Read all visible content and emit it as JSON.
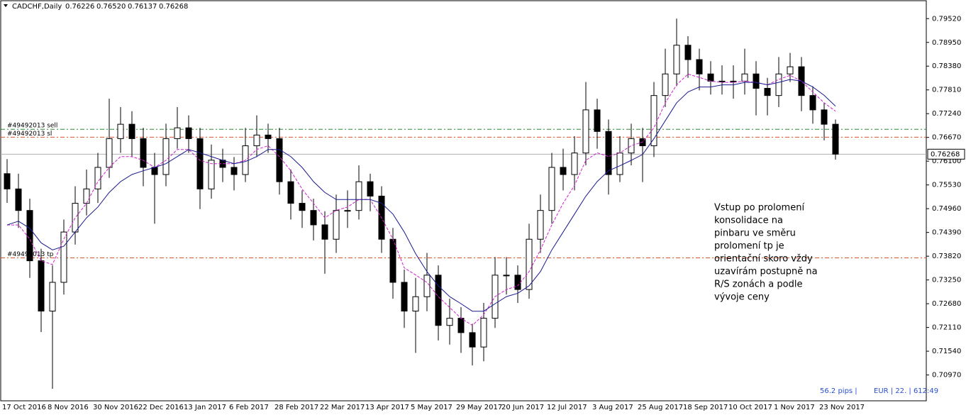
{
  "chart_data": {
    "type": "candlestick",
    "title": "CADCHF,Daily",
    "header_values": [
      0.76226,
      {
        "value": 0.7652,
        "label": "0.76520"
      },
      0.76137,
      0.76268
    ],
    "x_labels": [
      "17 Oct 2016",
      "8 Nov 2016",
      "30 Nov 2016",
      "22 Dec 2016",
      "13 Jan 2017",
      "6 Feb 2017",
      "28 Feb 2017",
      "22 Mar 2017",
      "13 Apr 2017",
      "5 May 2017",
      "29 May 2017",
      "20 Jun 2017",
      "12 Jul 2017",
      "3 Aug 2017",
      "25 Aug 2017",
      "18 Sep 2017",
      "10 Oct 2017",
      "1 Nov 2017",
      "23 Nov 2017"
    ],
    "ylim": [
      0.7035,
      0.7995
    ],
    "yticks": [
      {
        "value": 0.7952,
        "label": "0.79520"
      },
      {
        "value": 0.7895,
        "label": "0.78950"
      },
      {
        "value": 0.7838,
        "label": "0.78380"
      },
      {
        "value": 0.7781,
        "label": "0.77810"
      },
      {
        "value": 0.7724,
        "label": "0.77240"
      },
      {
        "value": 0.7667,
        "label": "0.76670"
      },
      {
        "value": 0.761,
        "label": "0.76100"
      },
      {
        "value": 0.7553,
        "label": "0.75530"
      },
      {
        "value": 0.7496,
        "label": "0.74960"
      },
      {
        "value": 0.7439,
        "label": "0.74390"
      },
      {
        "value": 0.7382,
        "label": "0.73820"
      },
      {
        "value": 0.7325,
        "label": "0.73250"
      },
      {
        "value": 0.7268,
        "label": "0.72680"
      },
      {
        "value": 0.7211,
        "label": "0.72110"
      },
      {
        "value": 0.7154,
        "label": "0.71540"
      },
      {
        "value": 0.7097,
        "label": "0.70970"
      }
    ],
    "up_color": "#ffffff",
    "down_color": "#000000",
    "candles": [
      [
        0.758,
        0.7615,
        0.751,
        0.75434
      ],
      [
        0.75434,
        0.758,
        0.745,
        0.74917
      ],
      [
        0.74917,
        0.752,
        0.733,
        0.7371
      ],
      [
        0.7371,
        0.74,
        0.72,
        0.72503
      ],
      [
        0.72503,
        0.736,
        0.7064,
        0.73193
      ],
      [
        0.73193,
        0.747,
        0.729,
        0.744
      ],
      [
        0.744,
        0.755,
        0.741,
        0.75089
      ],
      [
        0.75089,
        0.759,
        0.748,
        0.75434
      ],
      [
        0.75434,
        0.763,
        0.751,
        0.75951
      ],
      [
        0.75951,
        0.776,
        0.757,
        0.76641
      ],
      [
        0.76641,
        0.774,
        0.763,
        0.76986
      ],
      [
        0.76986,
        0.773,
        0.762,
        0.76641
      ],
      [
        0.76641,
        0.769,
        0.755,
        0.75951
      ],
      [
        0.75951,
        0.763,
        0.746,
        0.75779
      ],
      [
        0.75779,
        0.77,
        0.755,
        0.76641
      ],
      [
        0.76641,
        0.774,
        0.764,
        0.769
      ],
      [
        0.769,
        0.772,
        0.763,
        0.76641
      ],
      [
        0.76641,
        0.769,
        0.7495,
        0.75434
      ],
      [
        0.75434,
        0.765,
        0.752,
        0.76124
      ],
      [
        0.76124,
        0.764,
        0.756,
        0.75951
      ],
      [
        0.75951,
        0.762,
        0.754,
        0.75779
      ],
      [
        0.75779,
        0.769,
        0.756,
        0.76469
      ],
      [
        0.76469,
        0.772,
        0.762,
        0.76727
      ],
      [
        0.76727,
        0.77,
        0.763,
        0.76641
      ],
      [
        0.76641,
        0.769,
        0.753,
        0.75607
      ],
      [
        0.75607,
        0.759,
        0.747,
        0.75089
      ],
      [
        0.75089,
        0.754,
        0.745,
        0.74917
      ],
      [
        0.74917,
        0.752,
        0.742,
        0.74572
      ],
      [
        0.74572,
        0.749,
        0.734,
        0.74227
      ],
      [
        0.74227,
        0.753,
        0.739,
        0.74917
      ],
      [
        0.74917,
        0.754,
        0.745,
        0.74917
      ],
      [
        0.74917,
        0.76,
        0.747,
        0.75607
      ],
      [
        0.75607,
        0.758,
        0.749,
        0.75262
      ],
      [
        0.75262,
        0.755,
        0.739,
        0.74227
      ],
      [
        0.74227,
        0.745,
        0.728,
        0.73193
      ],
      [
        0.73193,
        0.735,
        0.721,
        0.72503
      ],
      [
        0.72503,
        0.733,
        0.715,
        0.72848
      ],
      [
        0.72848,
        0.739,
        0.725,
        0.73365
      ],
      [
        0.73365,
        0.736,
        0.718,
        0.72159
      ],
      [
        0.72159,
        0.728,
        0.717,
        0.72331
      ],
      [
        0.72331,
        0.726,
        0.715,
        0.71986
      ],
      [
        0.71986,
        0.722,
        0.712,
        0.71641
      ],
      [
        0.71641,
        0.727,
        0.713,
        0.72331
      ],
      [
        0.72331,
        0.738,
        0.721,
        0.73365
      ],
      [
        0.73365,
        0.738,
        0.729,
        0.73365
      ],
      [
        0.73365,
        0.736,
        0.727,
        0.73021
      ],
      [
        0.73021,
        0.746,
        0.728,
        0.74227
      ],
      [
        0.74227,
        0.753,
        0.739,
        0.74917
      ],
      [
        0.74917,
        0.763,
        0.746,
        0.75951
      ],
      [
        0.75951,
        0.764,
        0.754,
        0.75779
      ],
      [
        0.75779,
        0.767,
        0.754,
        0.76296
      ],
      [
        0.76296,
        0.78,
        0.76,
        0.77331
      ],
      [
        0.77331,
        0.776,
        0.764,
        0.76813
      ],
      [
        0.76813,
        0.771,
        0.753,
        0.75779
      ],
      [
        0.75779,
        0.767,
        0.756,
        0.76296
      ],
      [
        0.76296,
        0.77,
        0.76,
        0.76641
      ],
      [
        0.76641,
        0.769,
        0.756,
        0.76469
      ],
      [
        0.76469,
        0.78,
        0.762,
        0.77675
      ],
      [
        0.77675,
        0.788,
        0.774,
        0.78193
      ],
      [
        0.78193,
        0.7952,
        0.779,
        0.78882
      ],
      [
        0.78882,
        0.791,
        0.781,
        0.78537
      ],
      [
        0.78537,
        0.788,
        0.778,
        0.78193
      ],
      [
        0.78193,
        0.785,
        0.777,
        0.7802
      ],
      [
        0.7802,
        0.784,
        0.777,
        0.7802
      ],
      [
        0.7802,
        0.784,
        0.776,
        0.7802
      ],
      [
        0.7802,
        0.788,
        0.777,
        0.78193
      ],
      [
        0.78193,
        0.785,
        0.772,
        0.77848
      ],
      [
        0.77848,
        0.781,
        0.772,
        0.77675
      ],
      [
        0.77675,
        0.786,
        0.774,
        0.78193
      ],
      [
        0.78193,
        0.787,
        0.78,
        0.78365
      ],
      [
        0.78365,
        0.786,
        0.773,
        0.77675
      ],
      [
        0.77675,
        0.779,
        0.77,
        0.77331
      ],
      [
        0.77331,
        0.775,
        0.766,
        0.76986
      ],
      [
        0.76986,
        0.771,
        0.76137,
        0.76268
      ]
    ],
    "series": [
      {
        "color": "#d020d0",
        "values": [
          0.7457,
          0.7457,
          0.7423,
          0.7371,
          0.7362,
          0.7423,
          0.7474,
          0.7509,
          0.7561,
          0.7595,
          0.7621,
          0.7621,
          0.7612,
          0.7595,
          0.7612,
          0.7638,
          0.7638,
          0.7612,
          0.7604,
          0.7604,
          0.7604,
          0.7612,
          0.7638,
          0.7647,
          0.7621,
          0.7587,
          0.7543,
          0.7509,
          0.7474,
          0.7492,
          0.75,
          0.7518,
          0.7518,
          0.7474,
          0.7423,
          0.7354,
          0.7337,
          0.7319,
          0.7285,
          0.7259,
          0.7233,
          0.7216,
          0.7242,
          0.7285,
          0.7302,
          0.7311,
          0.7345,
          0.7397,
          0.7457,
          0.7509,
          0.7552,
          0.7612,
          0.763,
          0.7621,
          0.763,
          0.7647,
          0.7656,
          0.769,
          0.775,
          0.7793,
          0.7819,
          0.7811,
          0.7802,
          0.7799,
          0.7799,
          0.7802,
          0.7799,
          0.7793,
          0.7806,
          0.7816,
          0.7802,
          0.7776,
          0.775,
          0.773
        ]
      },
      {
        "color": "#1a1a90",
        "values": [
          0.7457,
          0.7466,
          0.7449,
          0.7414,
          0.7397,
          0.7406,
          0.744,
          0.7474,
          0.75,
          0.7535,
          0.7561,
          0.7578,
          0.7587,
          0.7595,
          0.7604,
          0.7621,
          0.7638,
          0.763,
          0.7621,
          0.7612,
          0.7604,
          0.7609,
          0.7621,
          0.7638,
          0.7638,
          0.7621,
          0.7595,
          0.7561,
          0.7535,
          0.7518,
          0.7518,
          0.7518,
          0.7518,
          0.7509,
          0.7483,
          0.744,
          0.7388,
          0.7345,
          0.7311,
          0.7285,
          0.7268,
          0.725,
          0.725,
          0.7268,
          0.7285,
          0.7293,
          0.7311,
          0.7345,
          0.7397,
          0.744,
          0.7483,
          0.7526,
          0.7561,
          0.7587,
          0.7599,
          0.7612,
          0.7626,
          0.7664,
          0.7707,
          0.775,
          0.7776,
          0.7788,
          0.7788,
          0.7793,
          0.7793,
          0.7799,
          0.7799,
          0.7793,
          0.7799,
          0.7806,
          0.7802,
          0.7788,
          0.7768,
          0.7742
        ]
      }
    ],
    "levels": [
      {
        "label": "#49492013 sell",
        "value": 0.76865,
        "color": "#2e8b2e"
      },
      {
        "label": "#49492013 sl",
        "value": 0.76675,
        "color": "#e0502a"
      },
      {
        "label": "#49492013 tp",
        "value": 0.73779,
        "color": "#e0502a"
      }
    ],
    "last_price": 0.76268,
    "annotation": [
      "Vstup po prolomení",
      "konsolidace na",
      "pinbaru ve směru",
      "prolomení tp je",
      "orientační skoro vždy",
      "uzavírám postupně na",
      "R/S zonách a podle",
      "vývoje ceny"
    ],
    "footer": [
      "56.2 pips |",
      "EUR | 22. | 612:49"
    ]
  }
}
